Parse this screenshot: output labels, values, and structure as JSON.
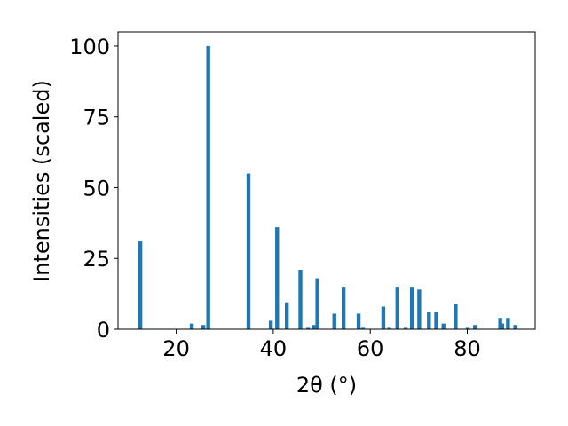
{
  "chart_data": {
    "type": "bar",
    "title": "",
    "xlabel": "2θ (°)",
    "ylabel": "Intensities (scaled)",
    "xlim": [
      8,
      94
    ],
    "ylim": [
      0,
      105
    ],
    "xticks": [
      20,
      40,
      60,
      80
    ],
    "yticks": [
      0,
      25,
      50,
      75,
      100
    ],
    "grid": false,
    "legend": "none",
    "bar_color": "#1f77b4",
    "bar_width": 0.8,
    "points": [
      {
        "x": 12.6,
        "y": 31
      },
      {
        "x": 23.2,
        "y": 2
      },
      {
        "x": 25.6,
        "y": 1.5
      },
      {
        "x": 26.6,
        "y": 100
      },
      {
        "x": 34.9,
        "y": 55
      },
      {
        "x": 39.5,
        "y": 3
      },
      {
        "x": 40.8,
        "y": 36
      },
      {
        "x": 42.8,
        "y": 9.5
      },
      {
        "x": 45.6,
        "y": 21
      },
      {
        "x": 47.2,
        "y": 0.5
      },
      {
        "x": 48.3,
        "y": 1.5
      },
      {
        "x": 49.1,
        "y": 18
      },
      {
        "x": 52.6,
        "y": 5.5
      },
      {
        "x": 54.5,
        "y": 15
      },
      {
        "x": 57.6,
        "y": 5.5
      },
      {
        "x": 58.5,
        "y": 0.5
      },
      {
        "x": 62.7,
        "y": 8
      },
      {
        "x": 63.9,
        "y": 0.5
      },
      {
        "x": 65.6,
        "y": 15
      },
      {
        "x": 67.3,
        "y": 0.5
      },
      {
        "x": 68.6,
        "y": 15
      },
      {
        "x": 70.1,
        "y": 14
      },
      {
        "x": 72.1,
        "y": 6
      },
      {
        "x": 73.6,
        "y": 6
      },
      {
        "x": 75.1,
        "y": 2
      },
      {
        "x": 77.6,
        "y": 9
      },
      {
        "x": 80.1,
        "y": 0.5
      },
      {
        "x": 81.6,
        "y": 1.5
      },
      {
        "x": 86.8,
        "y": 4
      },
      {
        "x": 87.2,
        "y": 2
      },
      {
        "x": 88.4,
        "y": 4
      },
      {
        "x": 89.9,
        "y": 1.5
      }
    ]
  }
}
